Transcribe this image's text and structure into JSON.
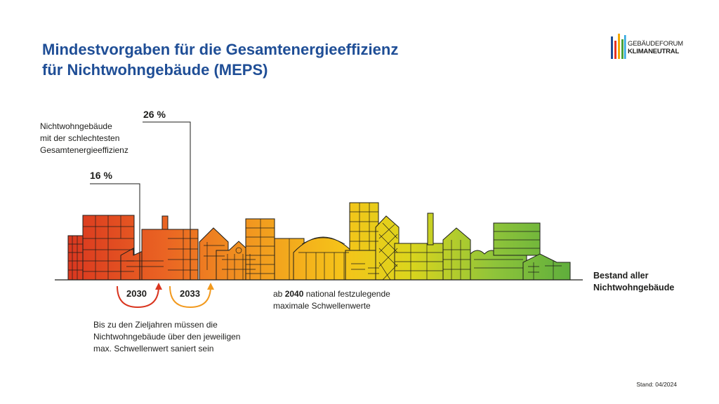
{
  "title": {
    "line1": "Mindestvorgaben für die Gesamtenergieeffizienz",
    "line2": "für Nichtwohngebäude (MEPS)"
  },
  "logo": {
    "line1": "GEBÄUDEFORUM",
    "line2": "KLIMANEUTRAL",
    "bar_colors": [
      "#1f4e96",
      "#e63323",
      "#f6a800",
      "#4aa13a",
      "#2ba6de"
    ]
  },
  "diagram": {
    "worst_label": [
      "Nichtwohngebäude",
      "mit der schlechtesten",
      "Gesamtenergieeffizienz"
    ],
    "pct_16": "16 %",
    "pct_26": "26 %",
    "year_2030": "2030",
    "year_2033": "2033",
    "target_note": [
      "Bis zu den Zieljahren müssen die",
      "Nichtwohngebäude über den jeweiligen",
      "max. Schwellenwert saniert sein"
    ],
    "note_2040_prefix": "ab ",
    "note_2040_year": "2040",
    "note_2040_rest": " national festzulegende",
    "note_2040_line2": "maximale Schwellenwerte",
    "stock_label": [
      "Bestand aller",
      "Nichtwohngebäude"
    ],
    "gradient_colors": [
      "#d9351f",
      "#ea6423",
      "#f29a1f",
      "#f5c319",
      "#dcd51c",
      "#8fc43a",
      "#5fae3c"
    ],
    "arrow_red": "#d9351f",
    "arrow_orange": "#f29a1f"
  },
  "footer": {
    "stand": "Stand: 04/2024"
  }
}
